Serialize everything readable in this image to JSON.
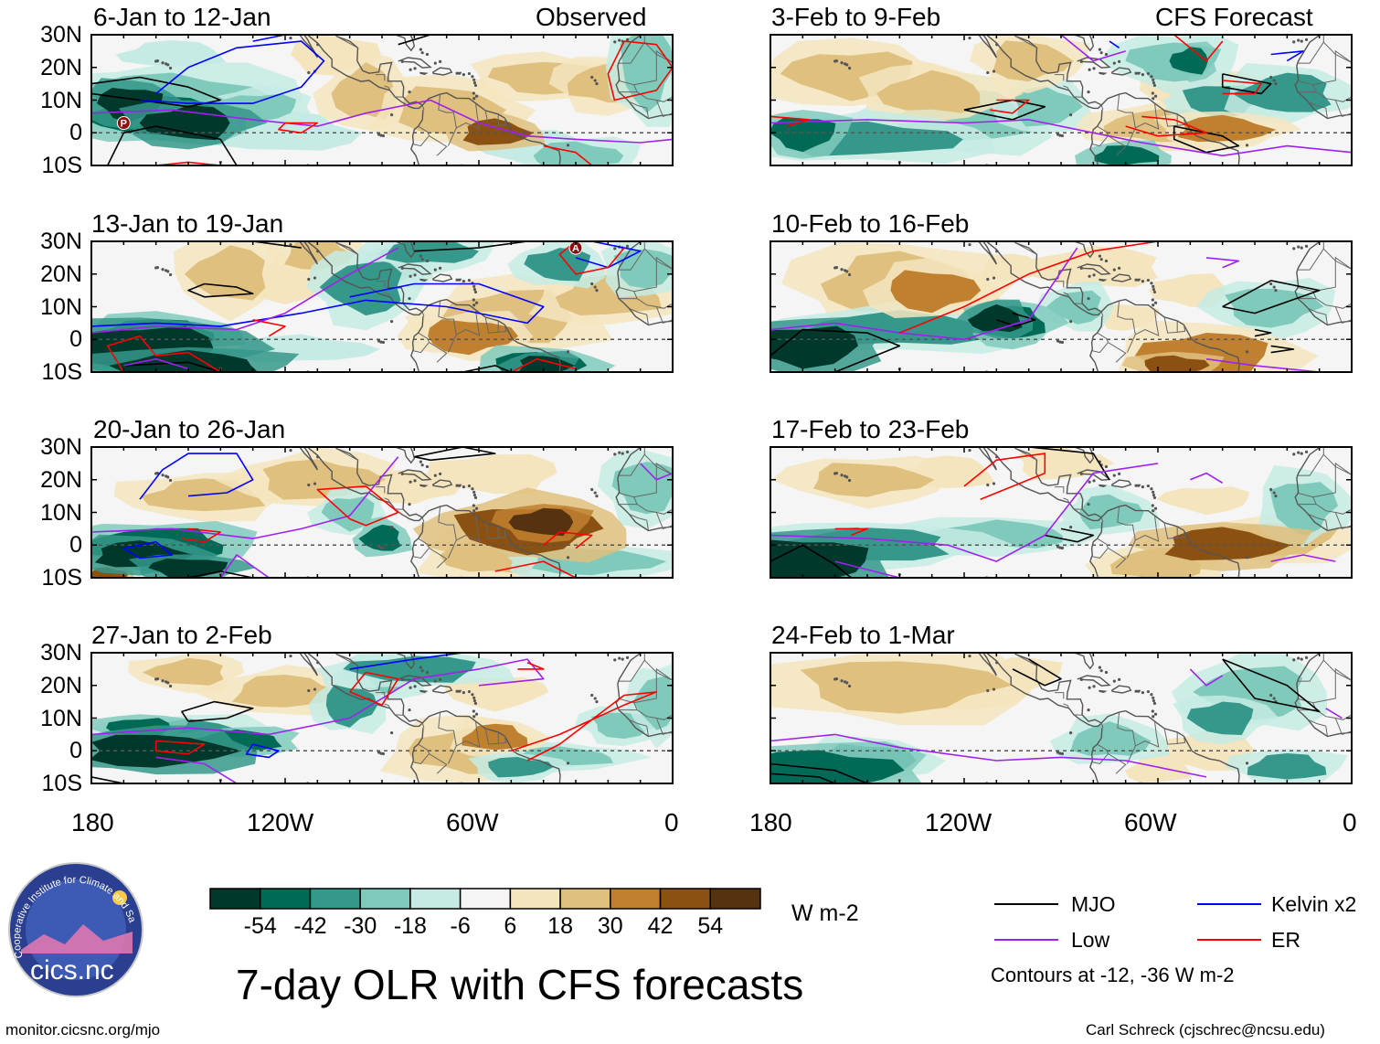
{
  "main_title": "7-day OLR with CFS forecasts",
  "footer_left": "monitor.cicsnc.org/mjo",
  "footer_right": "Carl Schreck (cjschrec@ncsu.edu)",
  "logo": {
    "text": "cics.nc",
    "ring_text": "Cooperative Institute for Climate and Satellites"
  },
  "colorbar": {
    "units": "W m-2",
    "tick_labels": [
      "-54",
      "-42",
      "-30",
      "-18",
      "-6",
      "6",
      "18",
      "30",
      "42",
      "54"
    ],
    "colors": [
      "#00382c",
      "#006a56",
      "#35988a",
      "#80cabc",
      "#c6ebe4",
      "#f5f5f5",
      "#f5e5be",
      "#dfc07e",
      "#bf8030",
      "#8a5112",
      "#553210"
    ]
  },
  "legend": {
    "items": [
      {
        "label": "MJO",
        "color": "#000000"
      },
      {
        "label": "Kelvin x2",
        "color": "#0000ff"
      },
      {
        "label": "Low",
        "color": "#a020f0"
      },
      {
        "label": "ER",
        "color": "#ff0000"
      }
    ],
    "note": "Contours at -12, -36 W m-2"
  },
  "axes": {
    "lat_labels": [
      "30N",
      "20N",
      "10N",
      "0",
      "10S"
    ],
    "lat_values": [
      30,
      20,
      10,
      0,
      -10
    ],
    "lon_labels": [
      "180",
      "120W",
      "60W",
      "0"
    ],
    "lon_values": [
      -180,
      -120,
      -60,
      0
    ],
    "lon_range": [
      -180,
      0
    ],
    "lat_range": [
      -10,
      30
    ]
  },
  "chart_data": {
    "type": "heatmap",
    "title": "7-day OLR with CFS forecasts",
    "variable": "OLR anomaly",
    "units": "W m-2",
    "contour_levels": [
      -12,
      -36
    ],
    "columns": [
      {
        "header": "Observed",
        "panels": [
          {
            "title": "6-Jan to 12-Jan",
            "markers": [
              "P"
            ]
          },
          {
            "title": "13-Jan to 19-Jan",
            "markers": [
              "A"
            ]
          },
          {
            "title": "20-Jan to 26-Jan",
            "markers": []
          },
          {
            "title": "27-Jan to 2-Feb",
            "markers": []
          }
        ]
      },
      {
        "header": "CFS Forecast",
        "panels": [
          {
            "title": "3-Feb to 9-Feb",
            "markers": []
          },
          {
            "title": "10-Feb to 16-Feb",
            "markers": []
          },
          {
            "title": "17-Feb to 23-Feb",
            "markers": []
          },
          {
            "title": "24-Feb to 1-Mar",
            "markers": []
          }
        ]
      }
    ]
  }
}
